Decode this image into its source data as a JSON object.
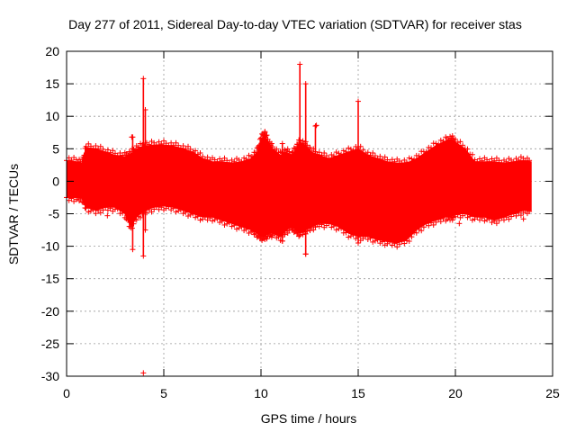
{
  "chart_data": {
    "type": "scatter",
    "title": "Day 277 of 2011, Sidereal Day-to-day VTEC variation (SDTVAR) for receiver stas",
    "xlabel": "GPS time / hours",
    "ylabel": "SDTVAR / TECUs",
    "xlim": [
      0,
      25
    ],
    "ylim": [
      -30,
      20
    ],
    "x_ticks": [
      0,
      5,
      10,
      15,
      20,
      25
    ],
    "y_ticks": [
      -30,
      -25,
      -20,
      -15,
      -10,
      -5,
      0,
      5,
      10,
      15,
      20
    ],
    "grid": true,
    "marker": "+",
    "color": "#ff0000",
    "envelope": {
      "x": [
        0.0,
        0.5,
        0.8,
        1.0,
        1.5,
        2.0,
        2.5,
        3.0,
        3.3,
        3.6,
        4.0,
        4.5,
        5.0,
        5.5,
        6.0,
        6.5,
        7.0,
        7.5,
        8.0,
        8.5,
        9.0,
        9.5,
        9.8,
        10.0,
        10.2,
        10.4,
        10.6,
        11.0,
        11.3,
        11.6,
        11.8,
        12.0,
        12.3,
        12.6,
        13.0,
        13.5,
        14.0,
        14.5,
        15.0,
        15.5,
        16.0,
        16.5,
        17.0,
        17.5,
        18.0,
        18.5,
        19.0,
        19.5,
        19.8,
        20.0,
        20.5,
        21.0,
        21.5,
        22.0,
        22.5,
        23.0,
        23.5,
        23.9
      ],
      "upper": [
        3.2,
        3.0,
        2.8,
        5.2,
        5.0,
        4.5,
        4.0,
        3.8,
        4.2,
        5.0,
        5.4,
        5.6,
        5.6,
        5.4,
        5.0,
        4.5,
        3.5,
        3.0,
        3.0,
        2.8,
        3.0,
        3.5,
        4.5,
        6.5,
        7.2,
        5.8,
        5.0,
        4.0,
        4.5,
        4.0,
        5.0,
        6.0,
        5.5,
        4.5,
        4.0,
        3.5,
        4.0,
        4.5,
        5.0,
        4.0,
        3.5,
        3.0,
        2.8,
        2.8,
        3.5,
        4.5,
        5.5,
        6.2,
        6.5,
        6.0,
        5.0,
        3.0,
        3.0,
        3.0,
        2.8,
        3.0,
        3.2,
        3.0
      ],
      "lower": [
        -2.5,
        -2.5,
        -2.6,
        -4.0,
        -4.5,
        -4.0,
        -4.0,
        -5.0,
        -7.0,
        -5.5,
        -4.5,
        -4.0,
        -3.8,
        -4.0,
        -4.5,
        -5.0,
        -5.5,
        -5.5,
        -6.0,
        -6.5,
        -7.0,
        -7.5,
        -8.0,
        -8.5,
        -8.5,
        -8.0,
        -8.0,
        -8.5,
        -7.5,
        -7.0,
        -7.5,
        -8.0,
        -7.5,
        -7.0,
        -6.5,
        -6.5,
        -7.0,
        -8.0,
        -8.5,
        -8.5,
        -9.0,
        -9.3,
        -9.5,
        -9.0,
        -7.5,
        -6.5,
        -6.0,
        -5.5,
        -5.5,
        -5.0,
        -5.0,
        -5.5,
        -5.5,
        -6.0,
        -5.5,
        -5.0,
        -4.5,
        -4.5
      ]
    },
    "spikes": [
      {
        "x": 3.95,
        "y_min": -11.5,
        "y_max": 15.8
      },
      {
        "x": 4.05,
        "y_min": -7.5,
        "y_max": 11.0
      },
      {
        "x": 3.4,
        "y_min": -10.5,
        "y_max": 6.8
      },
      {
        "x": 10.2,
        "y_min": -8.5,
        "y_max": 7.5
      },
      {
        "x": 12.0,
        "y_min": -7.0,
        "y_max": 18.0
      },
      {
        "x": 12.3,
        "y_min": -11.2,
        "y_max": 15.0
      },
      {
        "x": 12.8,
        "y_min": -7.0,
        "y_max": 8.5
      },
      {
        "x": 15.0,
        "y_min": -9.5,
        "y_max": 12.3
      },
      {
        "x": 11.1,
        "y_min": -9.2,
        "y_max": 5.8
      }
    ],
    "outliers": [
      {
        "x": 3.95,
        "y": -29.5
      },
      {
        "x": 2.1,
        "y": -5.3
      },
      {
        "x": 3.35,
        "y": 6.8
      },
      {
        "x": 12.3,
        "y": -11.2
      },
      {
        "x": 12.85,
        "y": 8.6
      },
      {
        "x": 11.1,
        "y": -9.2
      },
      {
        "x": 23.5,
        "y": -5.8
      },
      {
        "x": 20.2,
        "y": -6.5
      }
    ]
  }
}
